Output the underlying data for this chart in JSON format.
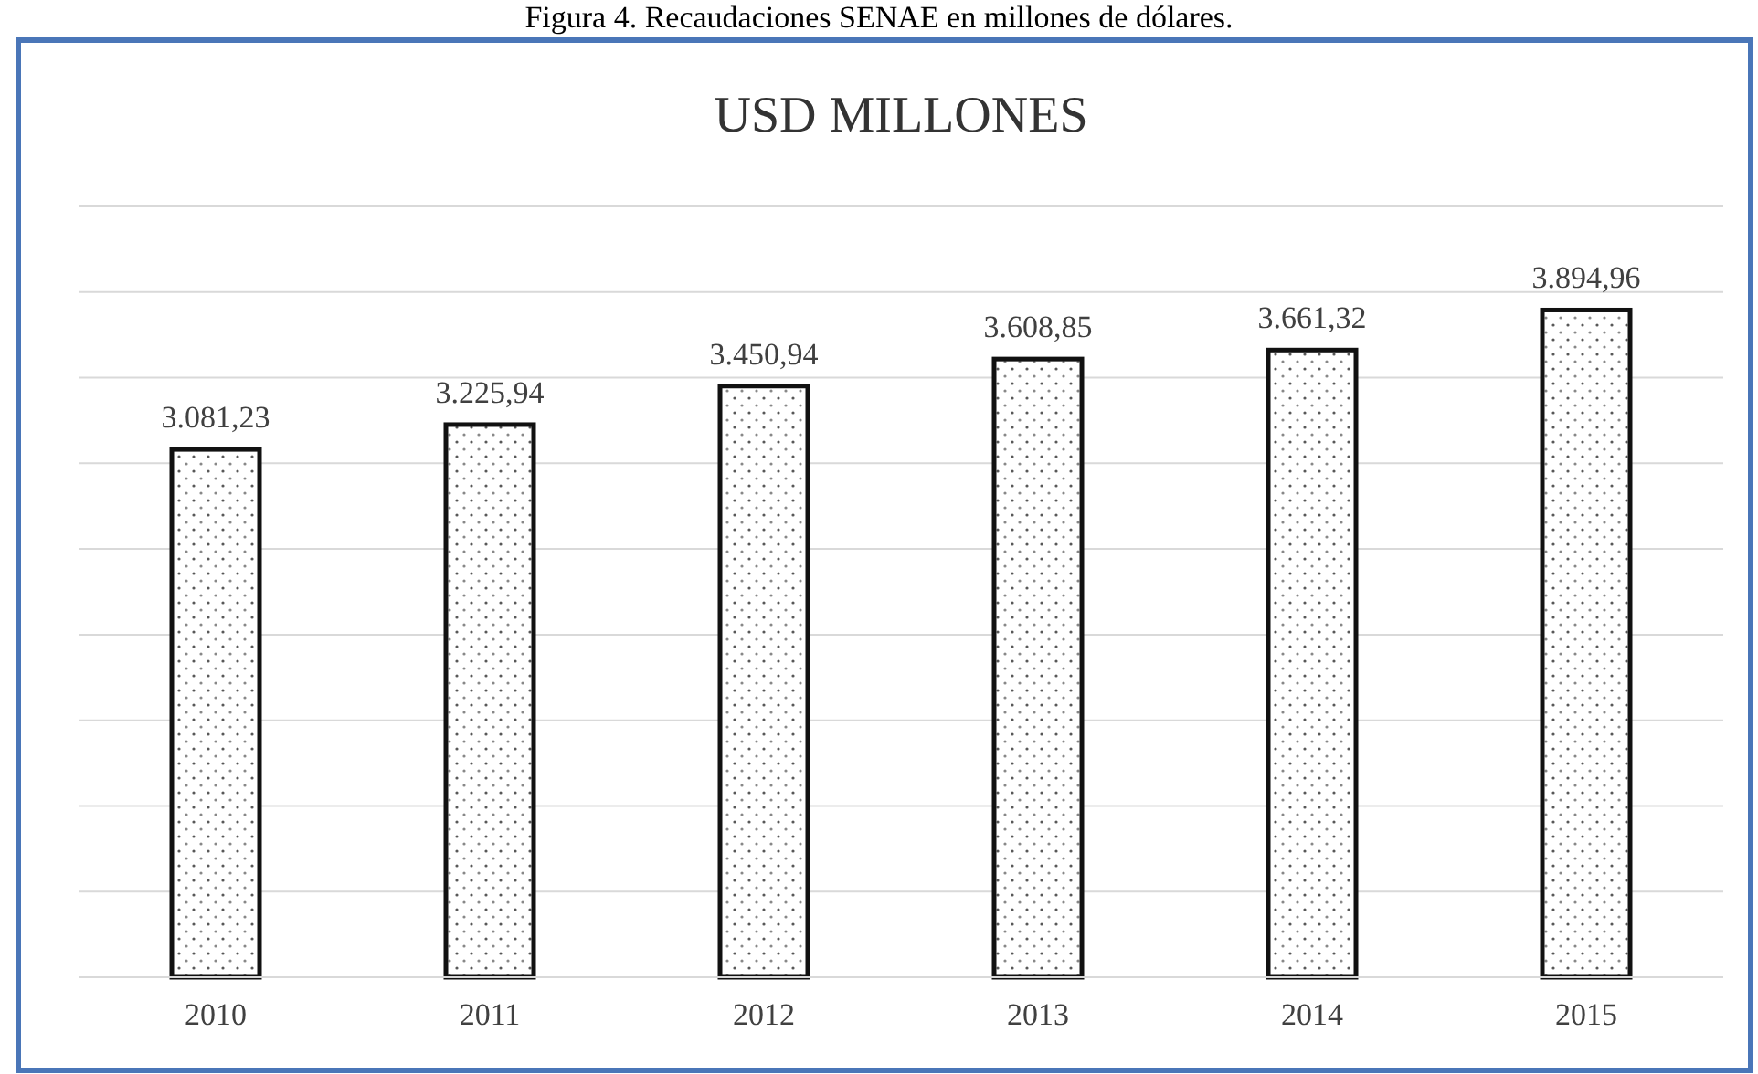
{
  "chart_data": {
    "type": "bar",
    "title": "USD MILLONES",
    "annotations": [
      "Figura 4. Recaudaciones SENAE en millones de dólares."
    ],
    "categories": [
      "2010",
      "2011",
      "2012",
      "2013",
      "2014",
      "2015"
    ],
    "values": [
      3081.23,
      3225.94,
      3450.94,
      3608.85,
      3661.32,
      3894.96
    ],
    "value_labels": [
      "3.081,23",
      "3.225,94",
      "3.450,94",
      "3.608,85",
      "3.661,32",
      "3.894,96"
    ],
    "color": "#111111",
    "ylim": [
      0,
      4500
    ],
    "yticks": [
      {
        "value": 0,
        "label": null
      },
      {
        "value": 500,
        "label": null
      },
      {
        "value": 1000,
        "label": null
      },
      {
        "value": 1500,
        "label": null
      },
      {
        "value": 2000,
        "label": null
      },
      {
        "value": 2500,
        "label": null
      },
      {
        "value": 3000,
        "label": null
      },
      {
        "value": 3500,
        "label": null
      },
      {
        "value": 4000,
        "label": null
      },
      {
        "value": 4500,
        "label": null
      }
    ],
    "grid": "y",
    "tick_labels": "x"
  }
}
